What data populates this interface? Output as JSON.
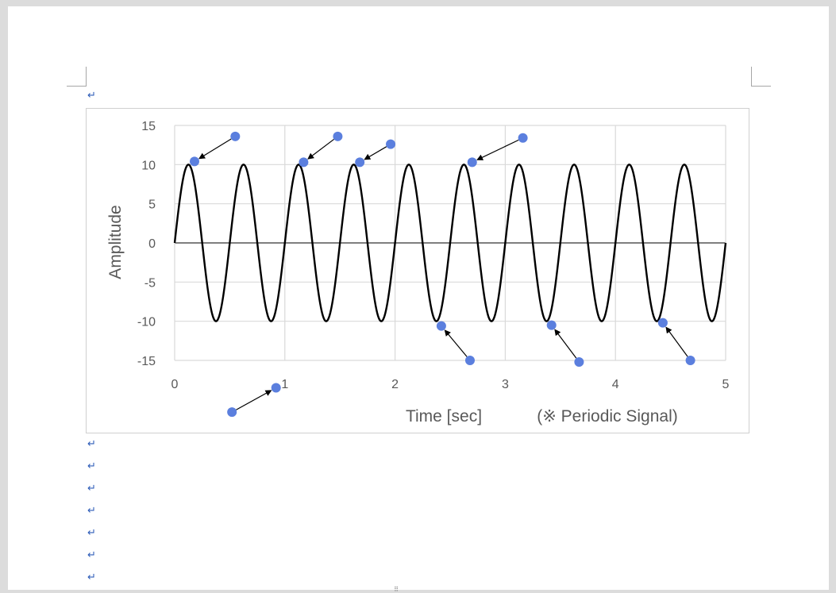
{
  "document": {
    "paragraph_mark": "↵"
  },
  "chart_data": {
    "type": "line",
    "title": "",
    "xlabel": "Time [sec]",
    "ylabel": "Amplitude",
    "annotation": "(※ Periodic Signal)",
    "xlim": [
      0,
      5
    ],
    "ylim": [
      -15,
      15
    ],
    "xticks": [
      0,
      1,
      2,
      3,
      4,
      5
    ],
    "yticks": [
      15,
      10,
      5,
      0,
      -5,
      -10,
      -15
    ],
    "grid": true,
    "series": [
      {
        "function": "10*sin(2*pi*2*t)",
        "amplitude": 10,
        "frequency_hz": 2,
        "color": "#000000"
      }
    ],
    "markers": {
      "color": "#5b7fde",
      "arrow_color": "#000000",
      "callouts": [
        {
          "from": [
            0.55,
            13.6
          ],
          "to": [
            0.18,
            10.4
          ]
        },
        {
          "from": [
            1.48,
            13.6
          ],
          "to": [
            1.17,
            10.3
          ]
        },
        {
          "from": [
            1.96,
            12.6
          ],
          "to": [
            1.68,
            10.3
          ]
        },
        {
          "from": [
            3.16,
            13.4
          ],
          "to": [
            2.7,
            10.3
          ]
        },
        {
          "from": [
            2.68,
            -15.0
          ],
          "to": [
            2.42,
            -10.6
          ]
        },
        {
          "from": [
            3.67,
            -15.2
          ],
          "to": [
            3.42,
            -10.5
          ]
        },
        {
          "from": [
            4.68,
            -15.0
          ],
          "to": [
            4.43,
            -10.2
          ]
        },
        {
          "from": [
            0.52,
            -21.6
          ],
          "to": [
            0.92,
            -18.5
          ]
        }
      ]
    }
  }
}
